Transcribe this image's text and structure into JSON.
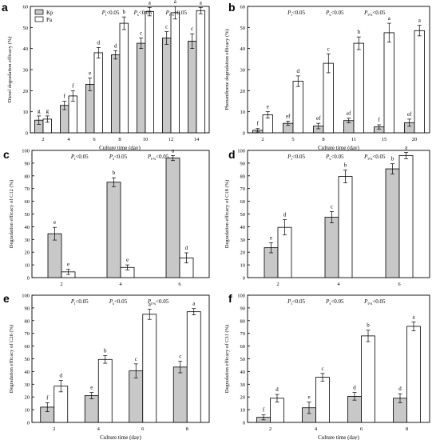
{
  "figure": {
    "legend": [
      {
        "name": "Kp",
        "color": "#c8c8c8"
      },
      {
        "name": "Pa",
        "color": "#ffffff"
      }
    ]
  },
  "colors": {
    "kp_fill": "#c8c8c8",
    "pa_fill": "#ffffff",
    "stroke": "#000000",
    "background": "#ffffff"
  },
  "chart_data": [
    {
      "panel": "a",
      "type": "bar",
      "xlabel": "Culture time (day)",
      "ylabel": "Diesel degradation efficacy (%)",
      "ylim": [
        0,
        60
      ],
      "yticks": [
        0,
        10,
        20,
        30,
        40,
        50,
        60
      ],
      "yticklabels": [
        "0",
        "10",
        "20",
        "30",
        "40",
        "50",
        "60"
      ],
      "stats": [
        {
          "sym": "P",
          "sub": "t",
          "val": "<0.05"
        },
        {
          "sym": "P",
          "sub": "s",
          "val": "<0.05"
        },
        {
          "sym": "P",
          "sub": "t×s",
          "val": "<0.05"
        }
      ],
      "legend": true,
      "categories": [
        "2",
        "4",
        "6",
        "8",
        "10",
        "12",
        "14"
      ],
      "series": [
        {
          "name": "Kp",
          "values": [
            6,
            13,
            23,
            37,
            42.5,
            45,
            43.5
          ],
          "errors": [
            2,
            2,
            3,
            2,
            2.5,
            3,
            3.5
          ],
          "letters": [
            "g",
            "f",
            "e",
            "d",
            "c",
            "c",
            "c"
          ]
        },
        {
          "name": "Pa",
          "values": [
            6.5,
            17.5,
            38,
            52,
            57.5,
            57,
            58
          ],
          "errors": [
            1.5,
            2.5,
            2.5,
            3,
            2,
            3,
            1.5
          ],
          "letters": [
            "g",
            "f",
            "d",
            "b",
            "a",
            "a",
            "a"
          ]
        }
      ]
    },
    {
      "panel": "b",
      "type": "bar",
      "xlabel": "Culture time (day)",
      "ylabel": "Phenanthrene degradation efficacy (%)",
      "ylim": [
        0,
        60
      ],
      "yticks": [
        0,
        10,
        20,
        30,
        40,
        50,
        60
      ],
      "yticklabels": [
        "0",
        "10",
        "20",
        "30",
        "40",
        "50",
        "60"
      ],
      "stats": [
        {
          "sym": "P",
          "sub": "t",
          "val": "<0.05"
        },
        {
          "sym": "P",
          "sub": "s",
          "val": "<0.05"
        },
        {
          "sym": "P",
          "sub": "t×s",
          "val": "<0.05"
        }
      ],
      "legend": false,
      "categories": [
        "2",
        "5",
        "8",
        "11",
        "15",
        "20"
      ],
      "series": [
        {
          "name": "Kp",
          "values": [
            1.2,
            4.5,
            3.2,
            5.8,
            2.8,
            4.8
          ],
          "errors": [
            0.8,
            1.0,
            1.3,
            1.1,
            1.0,
            1.7
          ],
          "letters": [
            "f",
            "ef",
            "ef",
            "ef",
            "f",
            "ef"
          ]
        },
        {
          "name": "Pa",
          "values": [
            8.5,
            24.5,
            33,
            42.5,
            47.5,
            48.5
          ],
          "errors": [
            1.5,
            2.5,
            4.5,
            3,
            4.5,
            2.5
          ],
          "letters": [
            "e",
            "d",
            "c",
            "b",
            "a",
            "a"
          ]
        }
      ]
    },
    {
      "panel": "c",
      "type": "bar",
      "xlabel": "",
      "ylabel": "Degradation efficacy of C12 (%)",
      "ylim": [
        0,
        100
      ],
      "yticks": [
        0,
        10,
        20,
        30,
        40,
        50,
        60,
        70,
        80,
        90,
        100
      ],
      "yticklabels": [
        "0",
        "10",
        "20",
        "30",
        "40",
        "50",
        "60",
        "70",
        "80",
        "90",
        "100"
      ],
      "stats": [
        {
          "sym": "P",
          "sub": "t",
          "val": "<0.05"
        },
        {
          "sym": "P",
          "sub": "s",
          "val": "<0.05"
        },
        {
          "sym": "P",
          "sub": "t×s",
          "val": "<0.05"
        }
      ],
      "legend": false,
      "categories": [
        "2",
        "4",
        "6"
      ],
      "series": [
        {
          "name": "Kp",
          "values": [
            34.5,
            75,
            94
          ],
          "errors": [
            5,
            3.5,
            2
          ],
          "letters": [
            "e",
            "b",
            "a"
          ]
        },
        {
          "name": "Pa",
          "values": [
            4.5,
            8,
            15.5
          ],
          "errors": [
            2,
            2,
            4
          ],
          "letters": [
            "e",
            "e",
            "d"
          ]
        }
      ]
    },
    {
      "panel": "d",
      "type": "bar",
      "xlabel": "",
      "ylabel": "Degradation efficacy of C18 (%)",
      "ylim": [
        0,
        100
      ],
      "yticks": [
        0,
        10,
        20,
        30,
        40,
        50,
        60,
        70,
        80,
        90,
        100
      ],
      "yticklabels": [
        "0",
        "10",
        "20",
        "30",
        "40",
        "50",
        "60",
        "70",
        "80",
        "90",
        "100"
      ],
      "stats": [
        {
          "sym": "P",
          "sub": "t",
          "val": "<0.05"
        },
        {
          "sym": "P",
          "sub": "s",
          "val": "<0.05"
        },
        {
          "sym": "P",
          "sub": "t×s",
          "val": "<0.05"
        }
      ],
      "legend": false,
      "categories": [
        "2",
        "4",
        "6"
      ],
      "series": [
        {
          "name": "Kp",
          "values": [
            23.5,
            47.5,
            85.5
          ],
          "errors": [
            4,
            4.5,
            4
          ],
          "letters": [
            "e",
            "c",
            "b"
          ]
        },
        {
          "name": "Pa",
          "values": [
            39.5,
            79.5,
            96
          ],
          "errors": [
            6,
            5,
            2.5
          ],
          "letters": [
            "d",
            "b",
            "a"
          ]
        }
      ]
    },
    {
      "panel": "e",
      "type": "bar",
      "xlabel": "Culture time (day)",
      "ylabel": "Degradation efficacy of C26 (%)",
      "ylim": [
        0,
        100
      ],
      "yticks": [
        0,
        10,
        20,
        30,
        40,
        50,
        60,
        70,
        80,
        90,
        100
      ],
      "yticklabels": [
        "0",
        "10",
        "20",
        "30",
        "40",
        "50",
        "60",
        "70",
        "80",
        "90",
        "100"
      ],
      "stats": [
        {
          "sym": "P",
          "sub": "t",
          "val": "<0.05"
        },
        {
          "sym": "P",
          "sub": "s",
          "val": "<0.05"
        },
        {
          "sym": "P",
          "sub": "t×s",
          "val": "<0.05"
        }
      ],
      "legend": false,
      "categories": [
        "2",
        "4",
        "6",
        "8"
      ],
      "series": [
        {
          "name": "Kp",
          "values": [
            12,
            21,
            40.5,
            43.5
          ],
          "errors": [
            3.5,
            2.5,
            5.5,
            4.5
          ],
          "letters": [
            "f",
            "e",
            "c",
            "c"
          ]
        },
        {
          "name": "Pa",
          "values": [
            28.5,
            49.5,
            85,
            87
          ],
          "errors": [
            4.5,
            3,
            4,
            2.5
          ],
          "letters": [
            "d",
            "b",
            "a",
            "a"
          ]
        }
      ]
    },
    {
      "panel": "f",
      "type": "bar",
      "xlabel": "Culture time (day)",
      "ylabel": "Degradation efficacy of C31 (%)",
      "ylim": [
        0,
        100
      ],
      "yticks": [
        0,
        10,
        20,
        30,
        40,
        50,
        60,
        70,
        80,
        90,
        100
      ],
      "yticklabels": [
        "0",
        "10",
        "20",
        "30",
        "40",
        "50",
        "60",
        "70",
        "80",
        "90",
        "100"
      ],
      "stats": [
        {
          "sym": "P",
          "sub": "t",
          "val": "<0.05"
        },
        {
          "sym": "P",
          "sub": "s",
          "val": "<0.05"
        },
        {
          "sym": "P",
          "sub": "t×s",
          "val": "<0.05"
        }
      ],
      "legend": false,
      "categories": [
        "2",
        "4",
        "6",
        "8"
      ],
      "series": [
        {
          "name": "Kp",
          "values": [
            4,
            11.5,
            20.5,
            19
          ],
          "errors": [
            2,
            4.5,
            3,
            3.5
          ],
          "letters": [
            "f",
            "e",
            "d",
            "d"
          ]
        },
        {
          "name": "Pa",
          "values": [
            19,
            35.5,
            68,
            75.5
          ],
          "errors": [
            3,
            3,
            4.5,
            3.5
          ],
          "letters": [
            "d",
            "c",
            "b",
            "a"
          ]
        }
      ]
    }
  ]
}
